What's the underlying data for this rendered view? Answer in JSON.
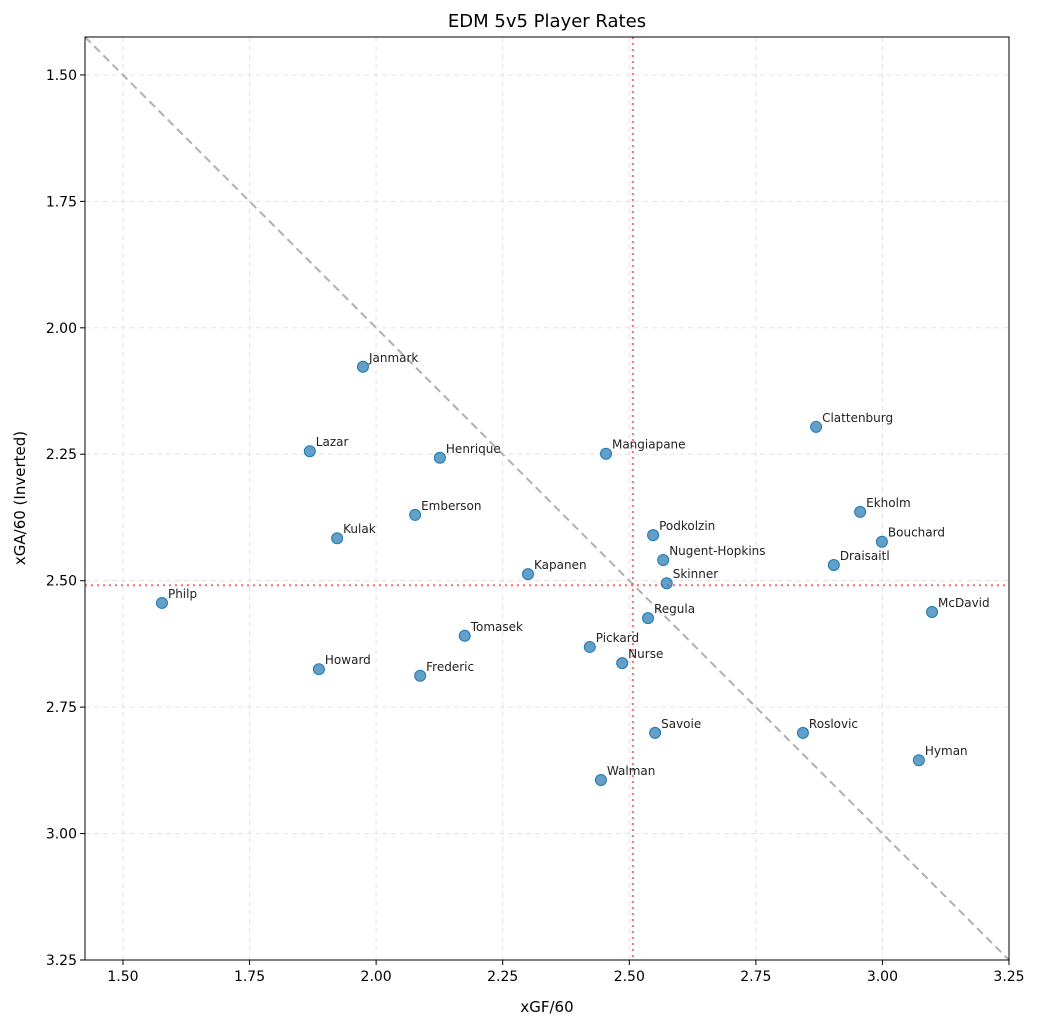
{
  "chart_data": {
    "type": "scatter",
    "title": "EDM 5v5 Player Rates",
    "xlabel": "xGF/60",
    "ylabel": "xGA/60 (Inverted)",
    "xlim": [
      1.425,
      3.25
    ],
    "ylim": [
      1.425,
      3.25
    ],
    "y_inverted": true,
    "grid": true,
    "x_ticks": [
      "1.50",
      "1.75",
      "2.00",
      "2.25",
      "2.50",
      "2.75",
      "3.00",
      "3.25"
    ],
    "y_ticks": [
      "1.50",
      "1.75",
      "2.00",
      "2.25",
      "2.50",
      "2.75",
      "3.00",
      "3.25"
    ],
    "reference_lines": {
      "x_mean": 2.507,
      "y_mean": 2.509,
      "diagonal": "y = x"
    },
    "colors": {
      "points": "#1f77b4",
      "mean_lines": "#ff6b6b",
      "diagonal": "#b0b0b0"
    },
    "points": [
      {
        "name": "Janmark",
        "x": 1.974,
        "y": 2.077
      },
      {
        "name": "Lazar",
        "x": 1.869,
        "y": 2.244
      },
      {
        "name": "Henrique",
        "x": 2.126,
        "y": 2.257
      },
      {
        "name": "Mangiapane",
        "x": 2.454,
        "y": 2.249
      },
      {
        "name": "Clattenburg",
        "x": 2.869,
        "y": 2.196
      },
      {
        "name": "Emberson",
        "x": 2.077,
        "y": 2.37
      },
      {
        "name": "Kulak",
        "x": 1.923,
        "y": 2.416
      },
      {
        "name": "Ekholm",
        "x": 2.956,
        "y": 2.364
      },
      {
        "name": "Bouchard",
        "x": 2.999,
        "y": 2.423
      },
      {
        "name": "Podkolzin",
        "x": 2.547,
        "y": 2.41
      },
      {
        "name": "Nugent-Hopkins",
        "x": 2.567,
        "y": 2.459
      },
      {
        "name": "Draisaitl",
        "x": 2.904,
        "y": 2.469
      },
      {
        "name": "Kapanen",
        "x": 2.3,
        "y": 2.487
      },
      {
        "name": "Skinner",
        "x": 2.574,
        "y": 2.505
      },
      {
        "name": "Philp",
        "x": 1.577,
        "y": 2.544
      },
      {
        "name": "McDavid",
        "x": 3.098,
        "y": 2.562
      },
      {
        "name": "Regula",
        "x": 2.537,
        "y": 2.574
      },
      {
        "name": "Tomasek",
        "x": 2.175,
        "y": 2.609
      },
      {
        "name": "Pickard",
        "x": 2.422,
        "y": 2.631
      },
      {
        "name": "Nurse",
        "x": 2.486,
        "y": 2.663
      },
      {
        "name": "Howard",
        "x": 1.887,
        "y": 2.675
      },
      {
        "name": "Frederic",
        "x": 2.087,
        "y": 2.688
      },
      {
        "name": "Savoie",
        "x": 2.551,
        "y": 2.801
      },
      {
        "name": "Roslovic",
        "x": 2.843,
        "y": 2.801
      },
      {
        "name": "Hyman",
        "x": 3.072,
        "y": 2.855
      },
      {
        "name": "Walman",
        "x": 2.444,
        "y": 2.894
      }
    ]
  }
}
